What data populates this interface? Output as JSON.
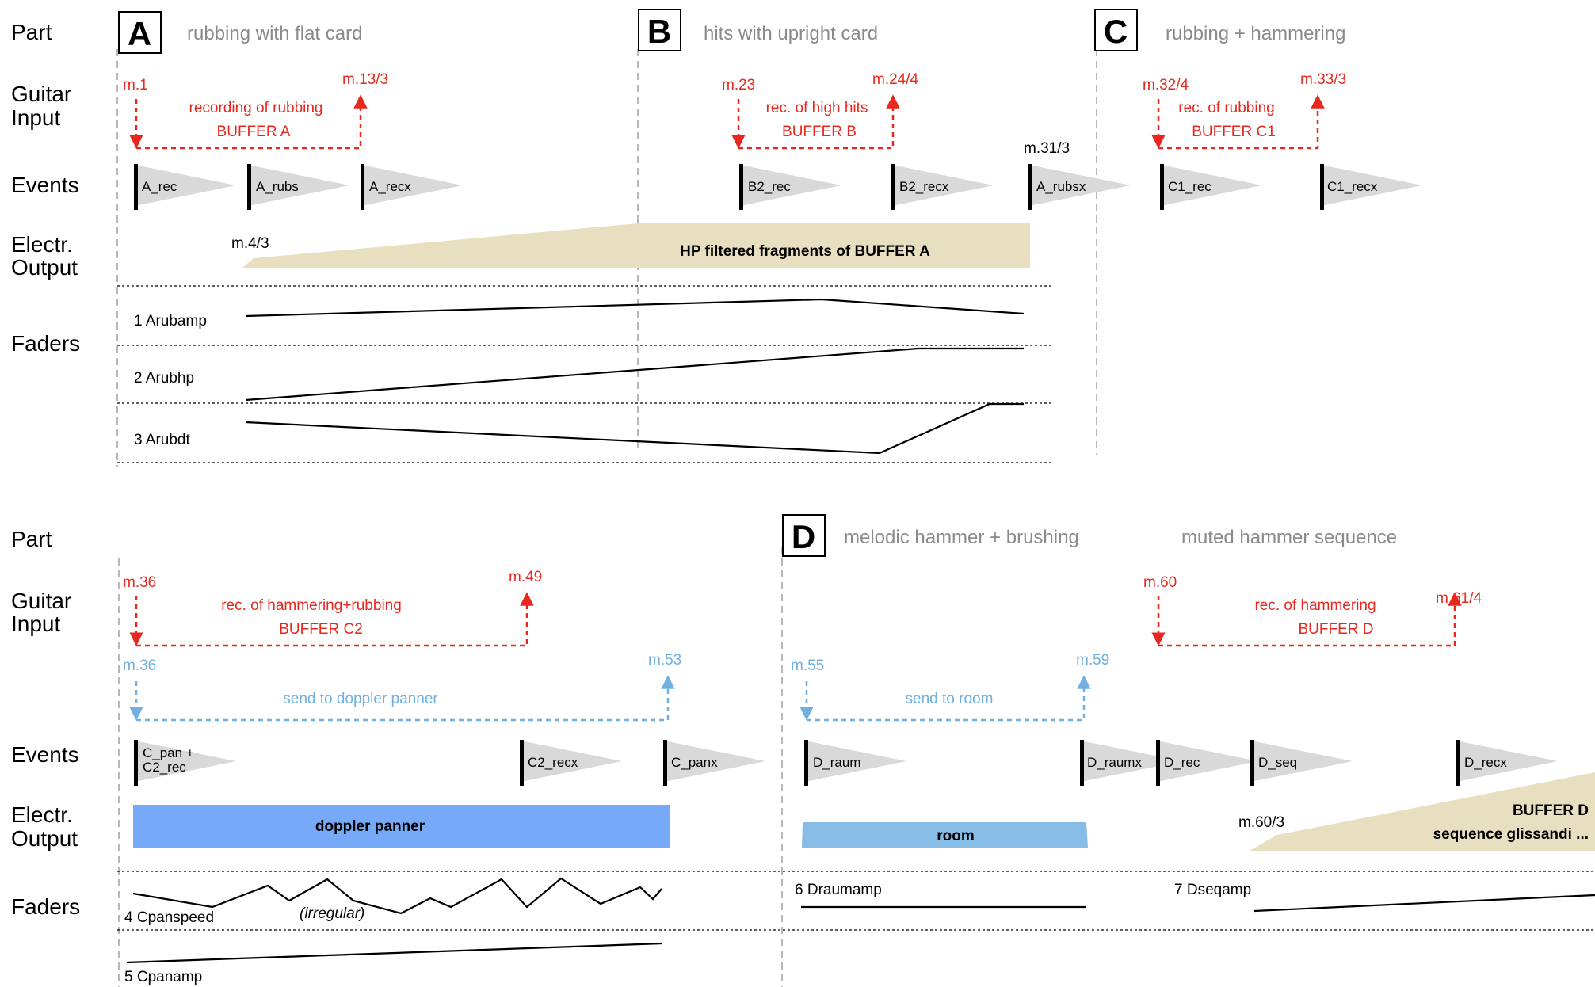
{
  "rows": {
    "part": "Part",
    "guitar_input_1": "Guitar",
    "guitar_input_2": "Input",
    "events": "Events",
    "electr_output_1": "Electr.",
    "electr_output_2": "Output",
    "faders": "Faders"
  },
  "top": {
    "part_a": {
      "letter": "A",
      "title": "rubbing with flat card"
    },
    "part_b": {
      "letter": "B",
      "title": "hits with upright card"
    },
    "part_c": {
      "letter": "C",
      "title": "rubbing + hammering"
    },
    "input_a": {
      "start": "m.1",
      "end": "m.13/3",
      "line1": "recording of rubbing",
      "line2": "BUFFER A"
    },
    "input_b": {
      "start": "m.23",
      "end": "m.24/4",
      "line1": "rec. of high hits",
      "line2": "BUFFER B"
    },
    "input_c": {
      "start": "m.32/4",
      "end": "m.33/3",
      "line1": "rec. of rubbing",
      "line2": "BUFFER C1"
    },
    "events": [
      "A_rec",
      "A_rubs",
      "A_recx",
      "B2_rec",
      "B2_recx",
      "A_rubsx",
      "C1_rec",
      "C1_recx"
    ],
    "a_rubsx_measure": "m.31/3",
    "output_measure": "m.4/3",
    "output_label": "HP filtered fragments of BUFFER A",
    "faders": [
      "1 Arubamp",
      "2 Arubhp",
      "3 Arubdt"
    ]
  },
  "bottom": {
    "part_d": {
      "letter": "D",
      "title": "melodic hammer + brushing"
    },
    "part_d_extra": "muted hammer sequence",
    "input_c2": {
      "start": "m.36",
      "end": "m.49",
      "line1": "rec. of hammering+rubbing",
      "line2": "BUFFER C2"
    },
    "send_doppler": {
      "start": "m.36",
      "end": "m.53",
      "label": "send to doppler panner"
    },
    "send_room": {
      "start": "m.55",
      "end": "m.59",
      "label": "send to room"
    },
    "input_d": {
      "start": "m.60",
      "end": "m.61/4",
      "line1": "rec. of hammering",
      "line2": "BUFFER D"
    },
    "events": {
      "c_pan_1": "C_pan +",
      "c_pan_2": "C2_rec",
      "c2_recx": "C2_recx",
      "c_panx": "C_panx",
      "d_raum": "D_raum",
      "d_raumx": "D_raumx",
      "d_rec": "D_rec",
      "d_seq": "D_seq",
      "d_recx": "D_recx"
    },
    "output_doppler": "doppler panner",
    "output_room": "room",
    "output_d_measure": "m.60/3",
    "output_d_1": "BUFFER D",
    "output_d_2": "sequence glissandi ...",
    "faders": {
      "cpanspeed": "4 Cpanspeed",
      "irregular": "(irregular)",
      "cpanamp": "5 Cpanamp",
      "draumamp": "6 Draumamp",
      "dseqamp": "7 Dseqamp"
    }
  },
  "colors": {
    "red": "#e8281e",
    "blue": "#6fb0e0",
    "tan": "#e8dfc0",
    "doppler_blue": "#76a9f7",
    "room_blue": "#86bce6",
    "gray_text": "#8a8a8a",
    "triangle": "#d9d9d9"
  }
}
